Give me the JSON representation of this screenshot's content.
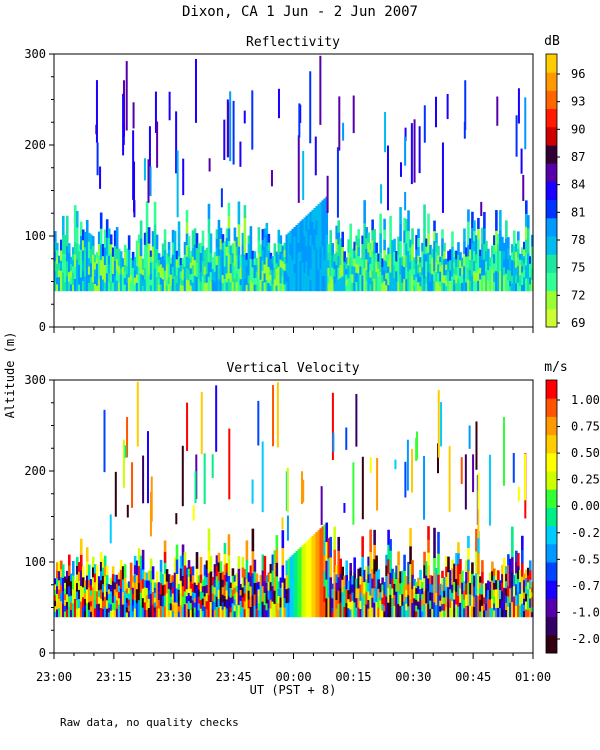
{
  "chart_data": {
    "title": "Dixon, CA  1 Jun -  2 Jun 2007",
    "ylabel": "Altitude (m)",
    "xlabel": "UT  (PST + 8)",
    "note": "Raw data, no quality checks",
    "x_ticks": [
      "23:00",
      "23:15",
      "23:30",
      "23:45",
      "00:00",
      "00:15",
      "00:30",
      "00:45",
      "01:00"
    ],
    "panels": [
      {
        "type": "heatmap",
        "title": "Reflectivity",
        "colorbar_unit": "dB",
        "ylim": [
          0,
          300
        ],
        "y_ticks": [
          "0",
          "100",
          "200",
          "300"
        ],
        "colorbar_ticks": [
          "69",
          "72",
          "75",
          "78",
          "81",
          "84",
          "87",
          "90",
          "93",
          "96"
        ],
        "colors": [
          "#ccff33",
          "#99ff33",
          "#33ff99",
          "#1ee6a0",
          "#00bbee",
          "#0099ff",
          "#0033ff",
          "#1a00ff",
          "#5500aa",
          "#330033",
          "#cc0000",
          "#ff1a00",
          "#ff6600",
          "#ff9900",
          "#ffcc00"
        ],
        "value_range": [
          68,
          98
        ],
        "data_floor_m": 40,
        "echo_extent_m": [
          40,
          140
        ],
        "notes": "Near-surface echo layer 40-100 m with sparse plumes up to 300 m"
      },
      {
        "type": "heatmap",
        "title": "Vertical Velocity",
        "colorbar_unit": "m/s",
        "ylim": [
          0,
          300
        ],
        "y_ticks": [
          "0",
          "100",
          "200",
          "300"
        ],
        "colorbar_ticks": [
          "1.00",
          "0.75",
          "0.50",
          "0.25",
          "0.00",
          "-0.25",
          "-0.50",
          "-0.75",
          "-1.00",
          "-2.00"
        ],
        "colors": [
          "#330011",
          "#330066",
          "#5500aa",
          "#1a00ff",
          "#0044ff",
          "#0099ff",
          "#00ccff",
          "#00ee88",
          "#33ff33",
          "#ccff00",
          "#ffff00",
          "#ffcc00",
          "#ff9900",
          "#ff5500",
          "#ff0000"
        ],
        "value_range": [
          -2,
          1.2
        ],
        "data_floor_m": 40,
        "echo_extent_m": [
          40,
          140
        ]
      }
    ]
  }
}
